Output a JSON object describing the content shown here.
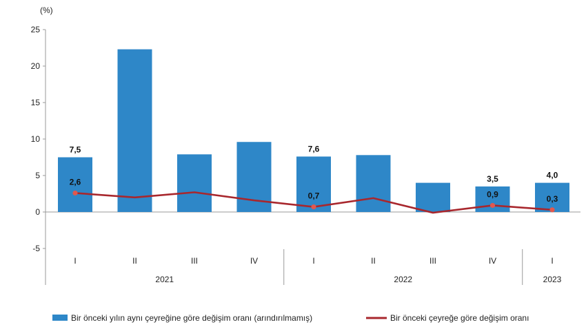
{
  "chart_data": {
    "type": "bar",
    "unit_label": "(%)",
    "ylim": [
      -5,
      25
    ],
    "yticks": [
      -5,
      0,
      5,
      10,
      15,
      20,
      25
    ],
    "categories": [
      "I",
      "II",
      "III",
      "IV",
      "I",
      "II",
      "III",
      "IV",
      "I"
    ],
    "year_groups": [
      {
        "label": "2021",
        "start": 0,
        "end": 3
      },
      {
        "label": "2022",
        "start": 4,
        "end": 7
      },
      {
        "label": "2023",
        "start": 8,
        "end": 8
      }
    ],
    "series": [
      {
        "name": "Bir önceki yılın aynı çeyreğine göre değişim oranı (arındırılmamış)",
        "type": "bar",
        "color": "#2e87c8",
        "values": [
          7.5,
          22.3,
          7.9,
          9.6,
          7.6,
          7.8,
          4.0,
          3.5,
          4.0
        ],
        "labels": [
          "7,5",
          "",
          "",
          "",
          "7,6",
          "",
          "",
          "3,5",
          "4,0"
        ]
      },
      {
        "name": "Bir önceki çeyreğe göre değişim oranı",
        "type": "line",
        "color": "#a8272d",
        "values": [
          2.6,
          2.0,
          2.7,
          1.6,
          0.7,
          1.9,
          -0.1,
          0.9,
          0.3
        ],
        "labels": [
          "2,6",
          "",
          "",
          "",
          "0,7",
          "",
          "",
          "0,9",
          "0,3"
        ]
      }
    ],
    "grid": false,
    "legend": "bottom"
  }
}
